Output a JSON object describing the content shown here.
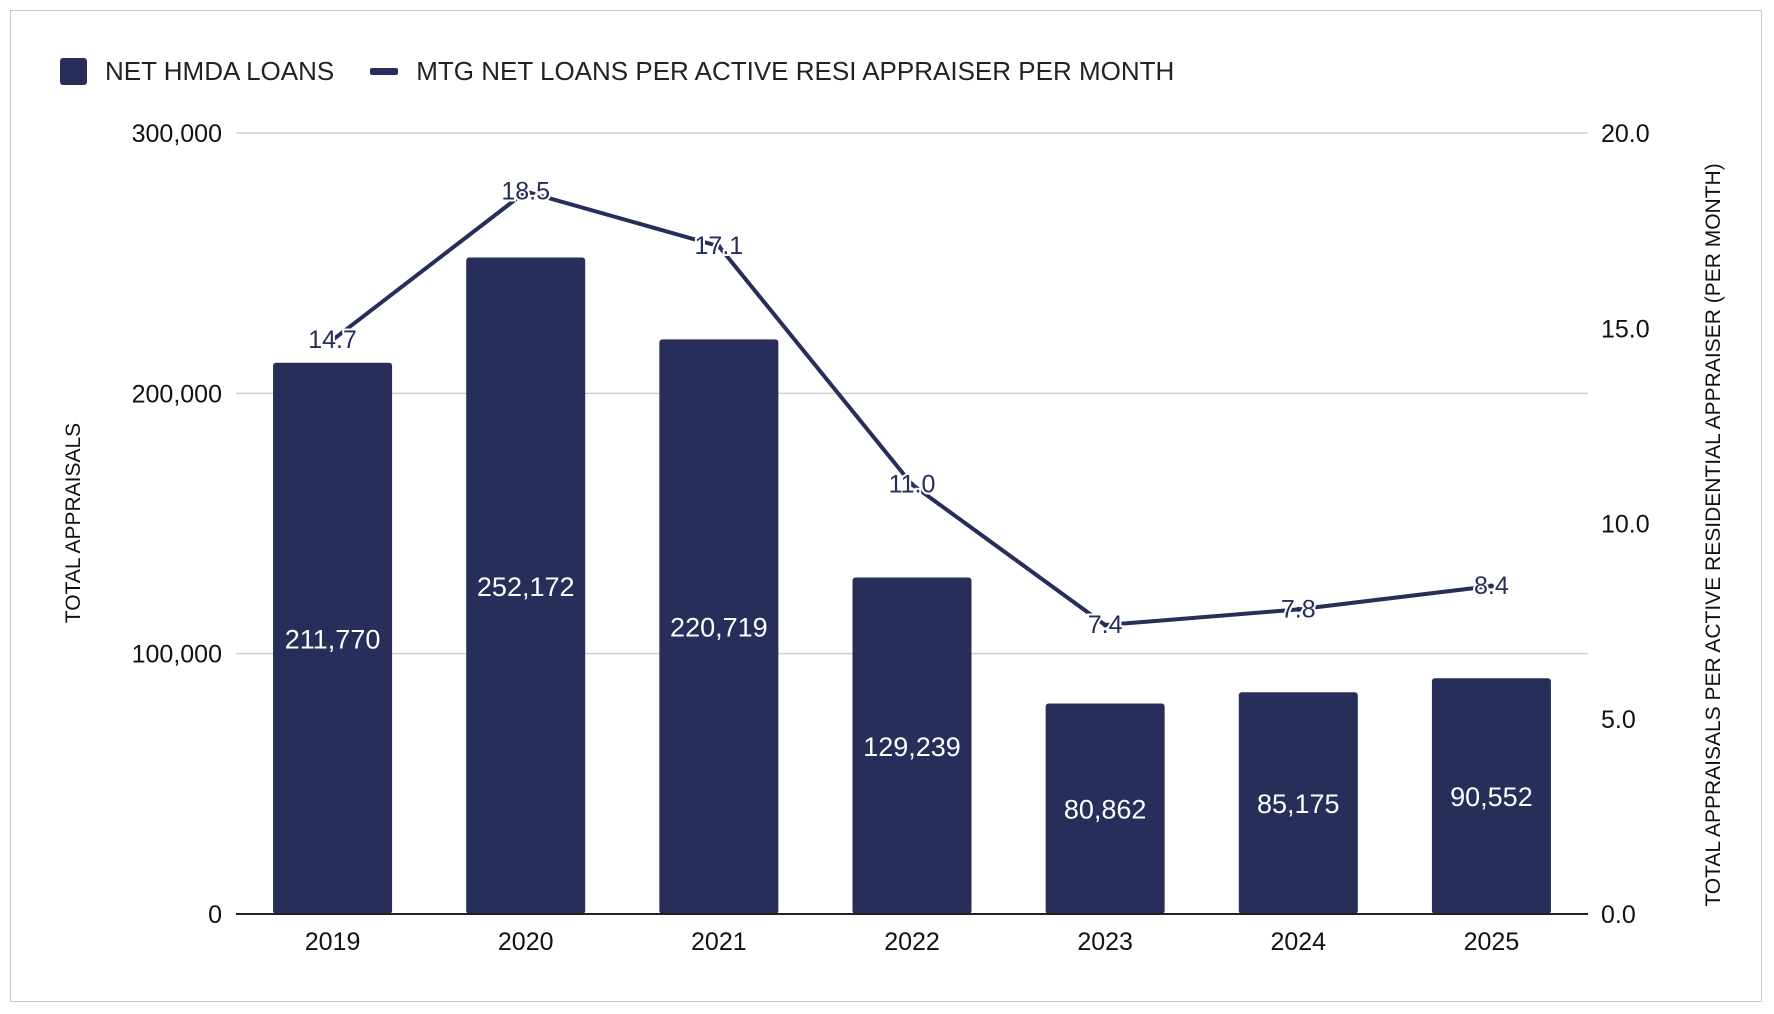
{
  "colors": {
    "primary": "#262e59",
    "grid": "#cfcfcf",
    "axis": "#222222",
    "text": "#111111"
  },
  "legend": {
    "bar_label": "NET HMDA LOANS",
    "line_label": "MTG NET LOANS PER ACTIVE RESI APPRAISER PER MONTH"
  },
  "chart_data": {
    "type": "bar",
    "categories": [
      "2019",
      "2020",
      "2021",
      "2022",
      "2023",
      "2024",
      "2025"
    ],
    "series": [
      {
        "name": "NET HMDA LOANS",
        "type": "bar",
        "axis": "left",
        "values": [
          211770,
          252172,
          220719,
          129239,
          80862,
          85175,
          90552
        ],
        "labels": [
          "211,770",
          "252,172",
          "220,719",
          "129,239",
          "80,862",
          "85,175",
          "90,552"
        ]
      },
      {
        "name": "MTG NET LOANS PER ACTIVE RESI APPRAISER PER MONTH",
        "type": "line",
        "axis": "right",
        "values": [
          14.7,
          18.5,
          17.1,
          11.0,
          7.4,
          7.8,
          8.4
        ],
        "labels": [
          "14.7",
          "18.5",
          "17.1",
          "11.0",
          "7.4",
          "7.8",
          "8.4"
        ]
      }
    ],
    "ylabel": "TOTAL APPRAISALS",
    "y2label": "TOTAL APPRAISALS PER ACTIVE RESIDENTIAL APPRAISER (PER MONTH)",
    "ylim": [
      0,
      300000
    ],
    "y2lim": [
      0,
      20
    ],
    "yticks": [
      "0",
      "100,000",
      "200,000",
      "300,000"
    ],
    "y2ticks": [
      "0.0",
      "5.0",
      "10.0",
      "15.0",
      "20.0"
    ],
    "grid": true,
    "legend_position": "top-left"
  }
}
